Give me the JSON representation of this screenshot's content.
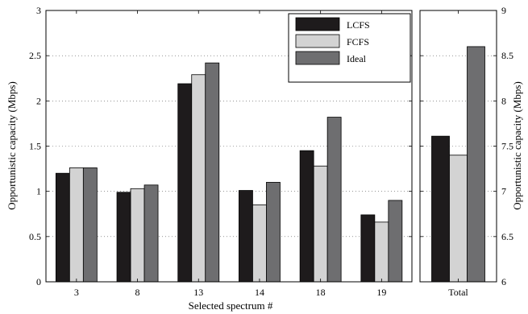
{
  "chart_data": [
    {
      "type": "bar",
      "categories": [
        "3",
        "8",
        "13",
        "14",
        "18",
        "19"
      ],
      "series": [
        {
          "name": "LCFS",
          "color": "#1e1b1c",
          "values": [
            1.2,
            0.99,
            2.19,
            1.01,
            1.45,
            0.74
          ]
        },
        {
          "name": "FCFS",
          "color": "#d3d3d3",
          "values": [
            1.26,
            1.03,
            2.29,
            0.85,
            1.28,
            0.66
          ]
        },
        {
          "name": "Ideal",
          "color": "#6e6e70",
          "values": [
            1.26,
            1.07,
            2.42,
            1.1,
            1.82,
            0.9
          ]
        }
      ],
      "xlabel": "Selected spectrum #",
      "ylabel": "Opportunistic capacity (Mbps)",
      "ylim": [
        0,
        3
      ],
      "yticks": [
        "0",
        "0.5",
        "1",
        "1.5",
        "2",
        "2.5",
        "3"
      ],
      "grid": true,
      "legend": "top-right"
    },
    {
      "type": "bar",
      "categories": [
        "Total"
      ],
      "series": [
        {
          "name": "LCFS",
          "color": "#1e1b1c",
          "values": [
            7.61
          ]
        },
        {
          "name": "FCFS",
          "color": "#d3d3d3",
          "values": [
            7.4
          ]
        },
        {
          "name": "Ideal",
          "color": "#6e6e70",
          "values": [
            8.6
          ]
        }
      ],
      "ylabel": "Opportunistic capacity (Mbps)",
      "ylim": [
        6,
        9
      ],
      "yticks": [
        "6",
        "6.5",
        "7",
        "7.5",
        "8",
        "8.5",
        "9"
      ],
      "grid": true
    }
  ]
}
